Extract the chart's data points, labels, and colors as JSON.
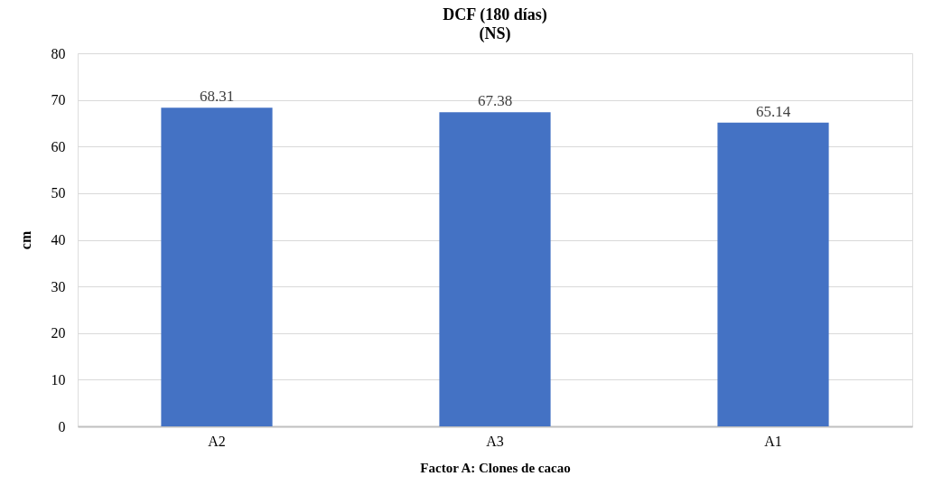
{
  "chart_data": {
    "type": "bar",
    "title": "DCF (180 días)",
    "subtitle": "(NS)",
    "xlabel": "Factor A: Clones de cacao",
    "ylabel": "cm",
    "categories": [
      "A2",
      "A3",
      "A1"
    ],
    "values": [
      68.31,
      67.38,
      65.14
    ],
    "color": "#4472c4",
    "ylim": [
      0,
      80
    ],
    "yticks": [
      0,
      10,
      20,
      30,
      40,
      50,
      60,
      70,
      80
    ],
    "grid": "y",
    "data_labels": true
  }
}
